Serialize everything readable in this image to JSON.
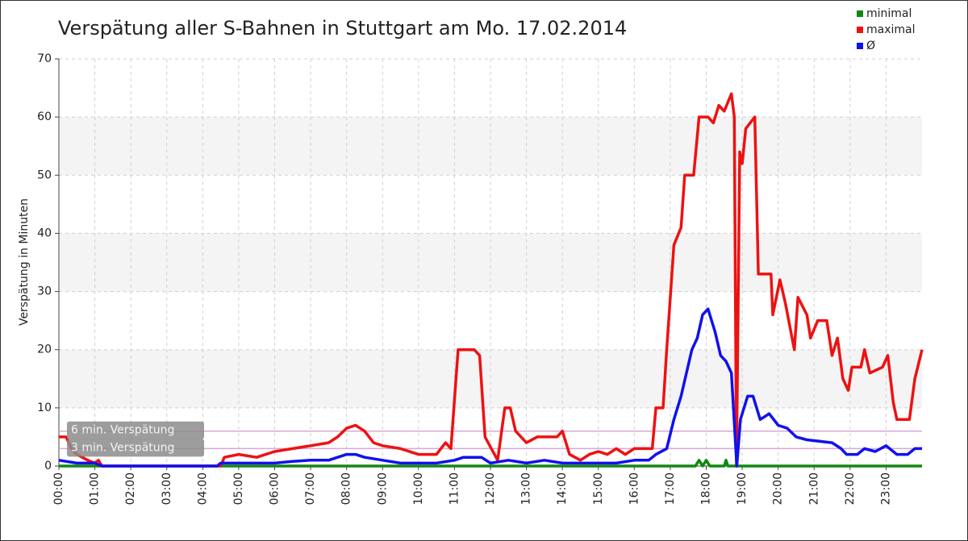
{
  "chart_data": {
    "type": "line",
    "title": "Verspätung aller S-Bahnen in Stuttgart am Mo. 17.02.2014",
    "y_label": "Verspätung in Minuten",
    "xlim": [
      0,
      24
    ],
    "ylim": [
      0,
      70
    ],
    "yticks": [
      0,
      10,
      20,
      30,
      40,
      50,
      60,
      70
    ],
    "xticks": [
      {
        "value": 0,
        "label": "00:00"
      },
      {
        "value": 1,
        "label": "01:00"
      },
      {
        "value": 2,
        "label": "02:00"
      },
      {
        "value": 3,
        "label": "03:00"
      },
      {
        "value": 4,
        "label": "04:00"
      },
      {
        "value": 5,
        "label": "05:00"
      },
      {
        "value": 6,
        "label": "06:00"
      },
      {
        "value": 7,
        "label": "07:00"
      },
      {
        "value": 8,
        "label": "08:00"
      },
      {
        "value": 9,
        "label": "09:00"
      },
      {
        "value": 10,
        "label": "10:00"
      },
      {
        "value": 11,
        "label": "11:00"
      },
      {
        "value": 12,
        "label": "12:00"
      },
      {
        "value": 13,
        "label": "13:00"
      },
      {
        "value": 14,
        "label": "14:00"
      },
      {
        "value": 15,
        "label": "15:00"
      },
      {
        "value": 16,
        "label": "16:00"
      },
      {
        "value": 17,
        "label": "17:00"
      },
      {
        "value": 18,
        "label": "18:00"
      },
      {
        "value": 19,
        "label": "19:00"
      },
      {
        "value": 20,
        "label": "20:00"
      },
      {
        "value": 21,
        "label": "21:00"
      },
      {
        "value": 22,
        "label": "22:00"
      },
      {
        "value": 23,
        "label": "23:00"
      }
    ],
    "grid": true,
    "legend": "top-right",
    "markers": [
      {
        "value": 6,
        "label": "6 min. Verspätung"
      },
      {
        "value": 3,
        "label": "3 min. Verspätung"
      }
    ],
    "marker_color": "#d9a6d9",
    "series": [
      {
        "name": "minimal",
        "color": "#118811",
        "x": [
          0,
          17.7,
          17.8,
          17.9,
          18.0,
          18.1,
          18.5,
          18.55,
          18.6,
          24
        ],
        "values": [
          0,
          0,
          1,
          0,
          1,
          0,
          0,
          1,
          0,
          0
        ]
      },
      {
        "name": "maximal",
        "color": "#ee1111",
        "x": [
          0,
          0.2,
          0.35,
          0.5,
          0.8,
          1.0,
          1.1,
          1.2,
          4.5,
          4.6,
          5.0,
          5.5,
          6.0,
          6.5,
          7.0,
          7.5,
          7.75,
          8.0,
          8.25,
          8.5,
          8.75,
          9.0,
          9.5,
          10.0,
          10.5,
          10.75,
          10.9,
          11.1,
          11.55,
          11.7,
          11.85,
          12.2,
          12.4,
          12.55,
          12.7,
          13.0,
          13.3,
          13.85,
          14.0,
          14.2,
          14.5,
          14.75,
          15.0,
          15.25,
          15.5,
          15.75,
          16.0,
          16.5,
          16.6,
          16.8,
          16.9,
          17.1,
          17.3,
          17.4,
          17.65,
          17.8,
          18.05,
          18.2,
          18.35,
          18.5,
          18.7,
          18.78,
          18.84,
          18.93,
          19.0,
          19.1,
          19.35,
          19.45,
          19.8,
          19.85,
          20.05,
          20.2,
          20.45,
          20.55,
          20.8,
          20.9,
          21.1,
          21.35,
          21.5,
          21.65,
          21.8,
          21.95,
          22.05,
          22.3,
          22.4,
          22.55,
          22.9,
          23.05,
          23.2,
          23.3,
          23.65,
          23.8,
          24.0
        ],
        "values": [
          5,
          5,
          3,
          2,
          1,
          0.5,
          1,
          0,
          0,
          1.5,
          2,
          1.5,
          2.5,
          3,
          3.5,
          4,
          5,
          6.5,
          7,
          6,
          4,
          3.5,
          3,
          2,
          2,
          4,
          3,
          20,
          20,
          19,
          5,
          1,
          10,
          10,
          6,
          4,
          5,
          5,
          6,
          2,
          1,
          2,
          2.5,
          2,
          3,
          2,
          3,
          3,
          10,
          10,
          20,
          38,
          41,
          50,
          50,
          60,
          60,
          59,
          62,
          61,
          64,
          60,
          0,
          54,
          52,
          58,
          60,
          33,
          33,
          26,
          32,
          28,
          20,
          29,
          26,
          22,
          25,
          25,
          19,
          22,
          15,
          13,
          17,
          17,
          20,
          16,
          17,
          19,
          11,
          8,
          8,
          15,
          20
        ]
      },
      {
        "name": "Ø",
        "color": "#1111ee",
        "x": [
          0,
          0.5,
          1.0,
          1.2,
          4.4,
          4.5,
          6.0,
          6.5,
          7.0,
          7.5,
          7.75,
          8.0,
          8.25,
          8.5,
          9.0,
          9.5,
          10.5,
          11.0,
          11.25,
          11.75,
          12.0,
          12.5,
          13.0,
          13.5,
          14.0,
          15.0,
          15.5,
          16.0,
          16.4,
          16.6,
          16.9,
          17.1,
          17.3,
          17.6,
          17.75,
          17.9,
          18.05,
          18.25,
          18.4,
          18.55,
          18.7,
          18.85,
          18.95,
          19.15,
          19.3,
          19.5,
          19.75,
          20.0,
          20.25,
          20.5,
          20.8,
          21.5,
          21.75,
          21.9,
          22.2,
          22.4,
          22.7,
          23.0,
          23.3,
          23.6,
          23.8,
          24.0
        ],
        "values": [
          1,
          0.5,
          0.5,
          0,
          0,
          0.5,
          0.5,
          0.8,
          1,
          1,
          1.5,
          2,
          2,
          1.5,
          1,
          0.5,
          0.5,
          1,
          1.5,
          1.5,
          0.5,
          1,
          0.5,
          1,
          0.5,
          0.5,
          0.5,
          1,
          1,
          2,
          3,
          8,
          12,
          20,
          22,
          26,
          27,
          23,
          19,
          18,
          16,
          0,
          8,
          12,
          12,
          8,
          9,
          7,
          6.5,
          5,
          4.5,
          4,
          3,
          2,
          2,
          3,
          2.5,
          3.5,
          2,
          2,
          3,
          3
        ]
      }
    ]
  }
}
